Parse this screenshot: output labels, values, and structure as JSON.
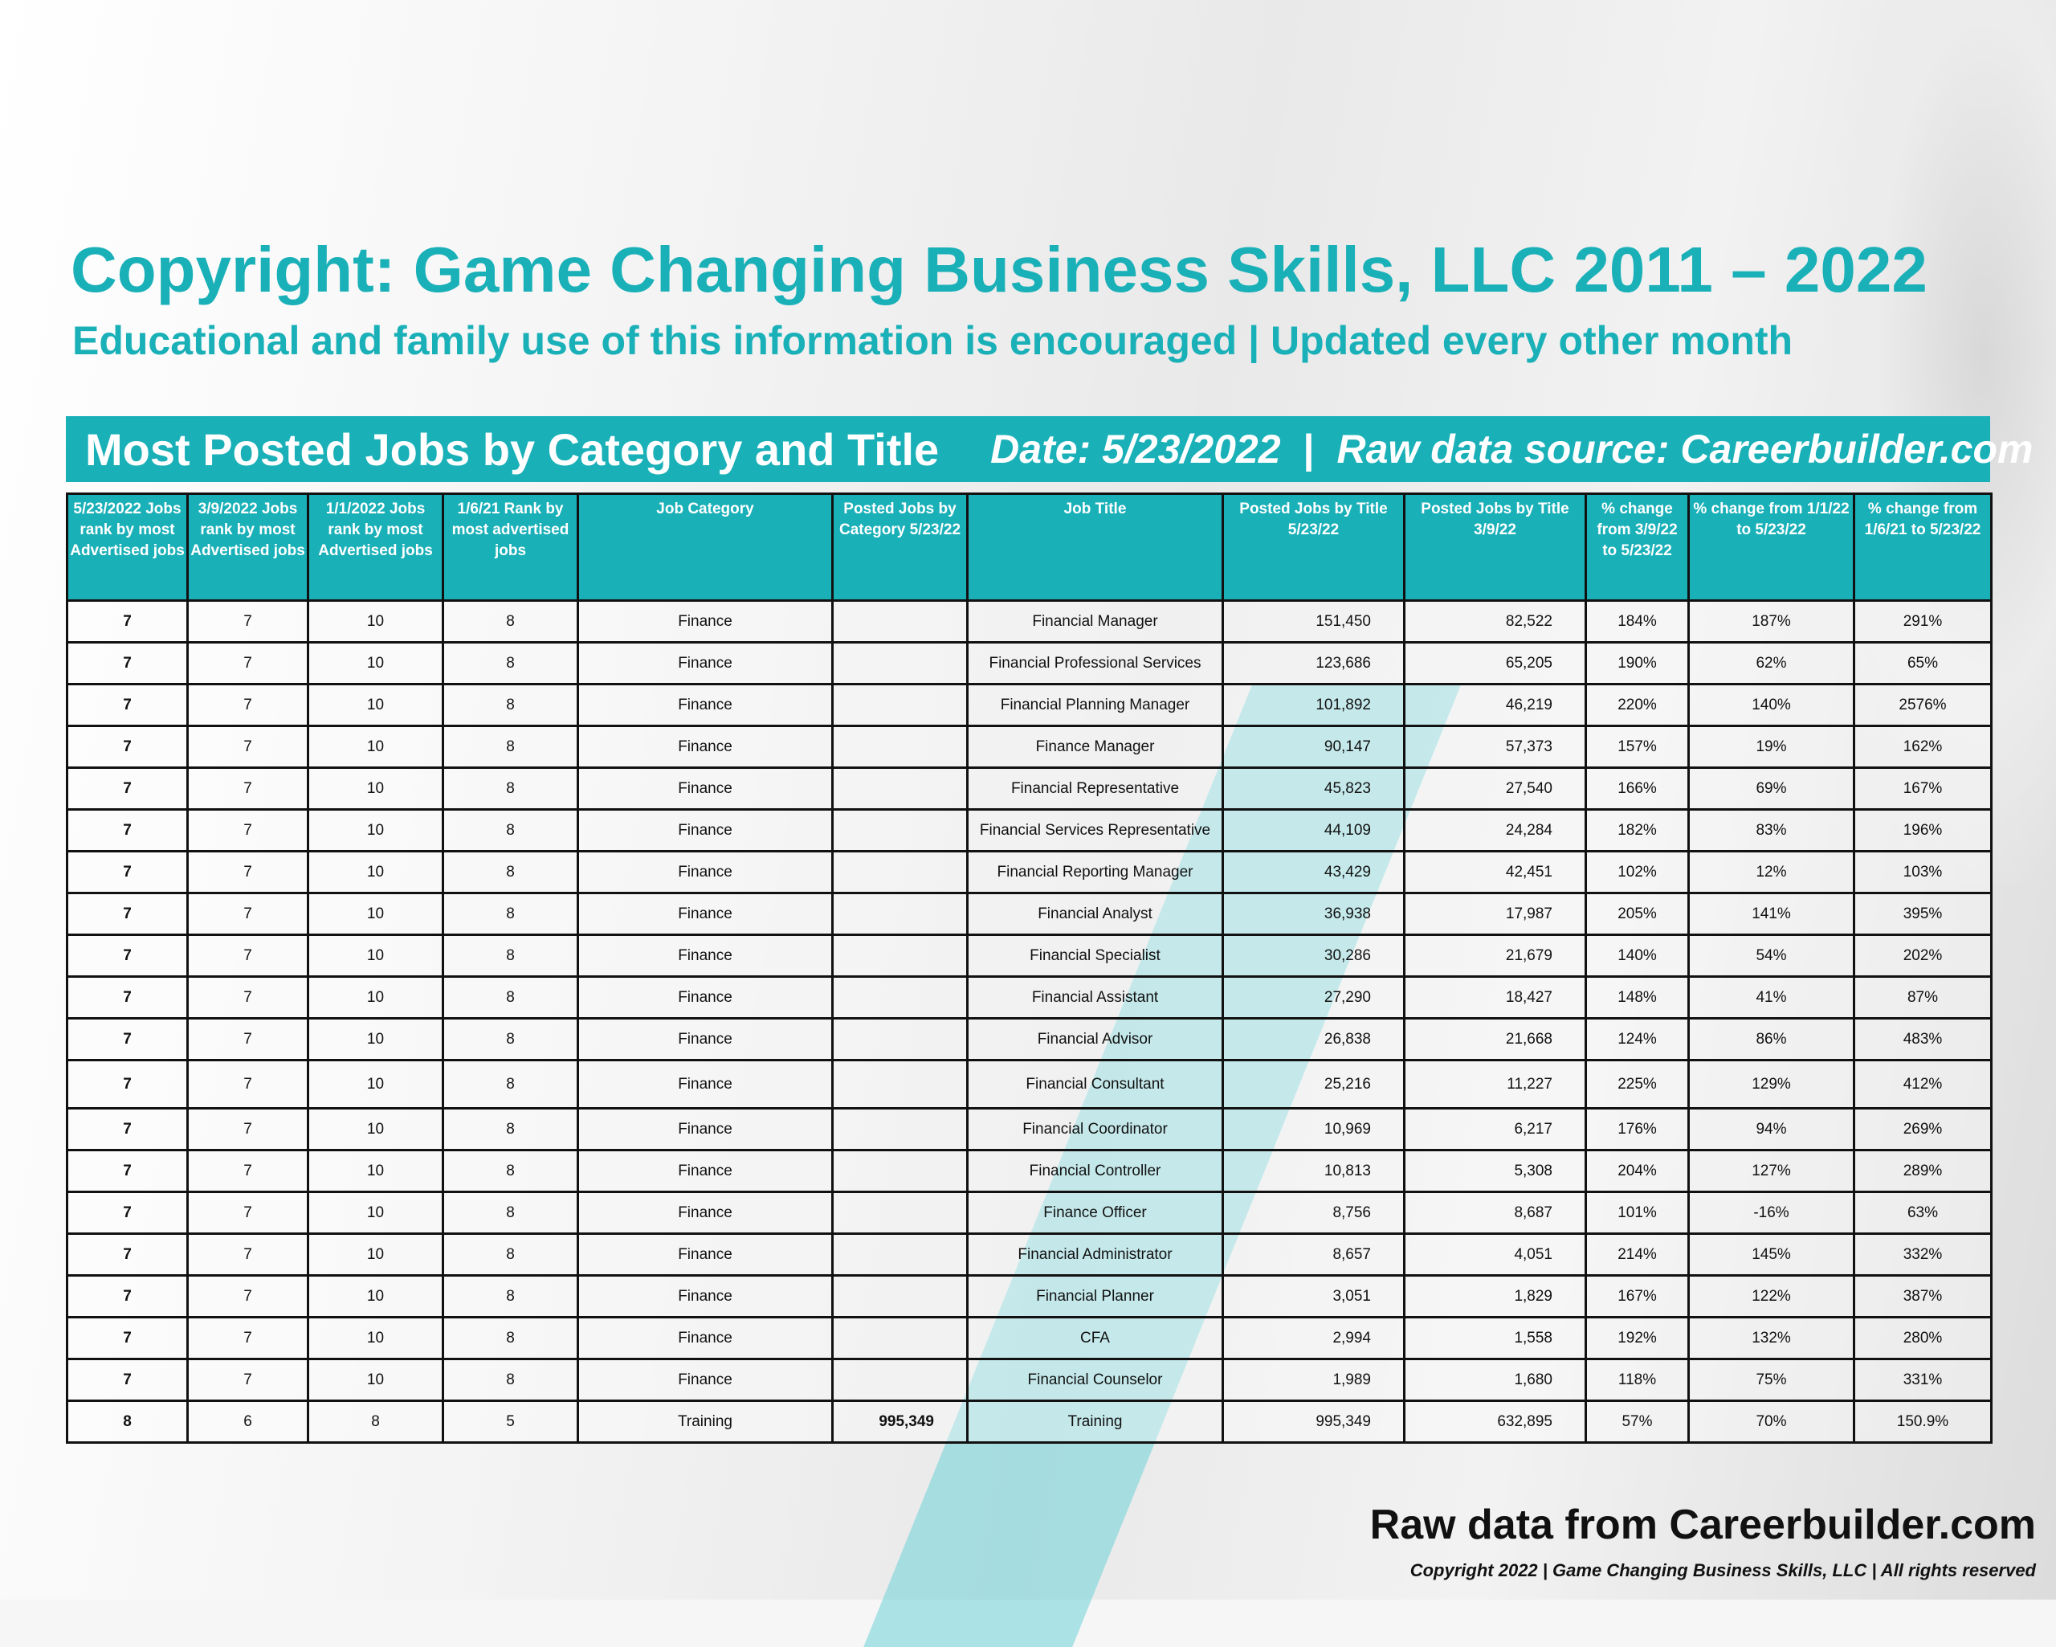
{
  "header": {
    "title": "Copyright: Game Changing Business Skills, LLC 2011 – 2022",
    "subtitle": "Educational and family use of this information is encouraged | Updated every other month"
  },
  "banner": {
    "title": "Most Posted Jobs by Category and Title",
    "date": "Date: 5/23/2022",
    "separator": "|",
    "source": "Raw data source: Careerbuilder.com"
  },
  "table": {
    "columns": [
      "5/23/2022 Jobs rank by most Advertised jobs",
      "3/9/2022 Jobs rank by most Advertised jobs",
      "1/1/2022 Jobs rank by most Advertised jobs",
      "1/6/21 Rank by most advertised jobs",
      "Job Category",
      "Posted Jobs by Category 5/23/22",
      "Job Title",
      "Posted Jobs by Title 5/23/22",
      "Posted Jobs by Title 3/9/22",
      "% change from 3/9/22 to 5/23/22",
      "% change from 1/1/22 to 5/23/22",
      "% change from 1/6/21 to 5/23/22"
    ],
    "rows": [
      [
        "7",
        "7",
        "10",
        "8",
        "Finance",
        "",
        "Financial Manager",
        "151,450",
        "82,522",
        "184%",
        "187%",
        "291%"
      ],
      [
        "7",
        "7",
        "10",
        "8",
        "Finance",
        "",
        "Financial Professional Services",
        "123,686",
        "65,205",
        "190%",
        "62%",
        "65%"
      ],
      [
        "7",
        "7",
        "10",
        "8",
        "Finance",
        "",
        "Financial Planning Manager",
        "101,892",
        "46,219",
        "220%",
        "140%",
        "2576%"
      ],
      [
        "7",
        "7",
        "10",
        "8",
        "Finance",
        "",
        "Finance Manager",
        "90,147",
        "57,373",
        "157%",
        "19%",
        "162%"
      ],
      [
        "7",
        "7",
        "10",
        "8",
        "Finance",
        "",
        "Financial Representative",
        "45,823",
        "27,540",
        "166%",
        "69%",
        "167%"
      ],
      [
        "7",
        "7",
        "10",
        "8",
        "Finance",
        "",
        "Financial Services Representative",
        "44,109",
        "24,284",
        "182%",
        "83%",
        "196%"
      ],
      [
        "7",
        "7",
        "10",
        "8",
        "Finance",
        "",
        "Financial Reporting Manager",
        "43,429",
        "42,451",
        "102%",
        "12%",
        "103%"
      ],
      [
        "7",
        "7",
        "10",
        "8",
        "Finance",
        "",
        "Financial Analyst",
        "36,938",
        "17,987",
        "205%",
        "141%",
        "395%"
      ],
      [
        "7",
        "7",
        "10",
        "8",
        "Finance",
        "",
        "Financial Specialist",
        "30,286",
        "21,679",
        "140%",
        "54%",
        "202%"
      ],
      [
        "7",
        "7",
        "10",
        "8",
        "Finance",
        "",
        "Financial Assistant",
        "27,290",
        "18,427",
        "148%",
        "41%",
        "87%"
      ],
      [
        "7",
        "7",
        "10",
        "8",
        "Finance",
        "",
        "Financial Advisor",
        "26,838",
        "21,668",
        "124%",
        "86%",
        "483%"
      ],
      [
        "7",
        "7",
        "10",
        "8",
        "Finance",
        "",
        "Financial Consultant",
        "25,216",
        "11,227",
        "225%",
        "129%",
        "412%"
      ],
      [
        "7",
        "7",
        "10",
        "8",
        "Finance",
        "",
        "Financial Coordinator",
        "10,969",
        "6,217",
        "176%",
        "94%",
        "269%"
      ],
      [
        "7",
        "7",
        "10",
        "8",
        "Finance",
        "",
        "Financial Controller",
        "10,813",
        "5,308",
        "204%",
        "127%",
        "289%"
      ],
      [
        "7",
        "7",
        "10",
        "8",
        "Finance",
        "",
        "Finance Officer",
        "8,756",
        "8,687",
        "101%",
        "-16%",
        "63%"
      ],
      [
        "7",
        "7",
        "10",
        "8",
        "Finance",
        "",
        "Financial Administrator",
        "8,657",
        "4,051",
        "214%",
        "145%",
        "332%"
      ],
      [
        "7",
        "7",
        "10",
        "8",
        "Finance",
        "",
        "Financial Planner",
        "3,051",
        "1,829",
        "167%",
        "122%",
        "387%"
      ],
      [
        "7",
        "7",
        "10",
        "8",
        "Finance",
        "",
        "CFA",
        "2,994",
        "1,558",
        "192%",
        "132%",
        "280%"
      ],
      [
        "7",
        "7",
        "10",
        "8",
        "Finance",
        "",
        "Financial Counselor",
        "1,989",
        "1,680",
        "118%",
        "75%",
        "331%"
      ],
      [
        "8",
        "6",
        "8",
        "5",
        "Training",
        "995,349",
        "Training",
        "995,349",
        "632,895",
        "57%",
        "70%",
        "150.9%"
      ]
    ]
  },
  "footer": {
    "raw_data": "Raw data from Careerbuilder.com",
    "copyright": "Copyright 2022 | Game Changing Business Skills, LLC | All rights reserved"
  }
}
